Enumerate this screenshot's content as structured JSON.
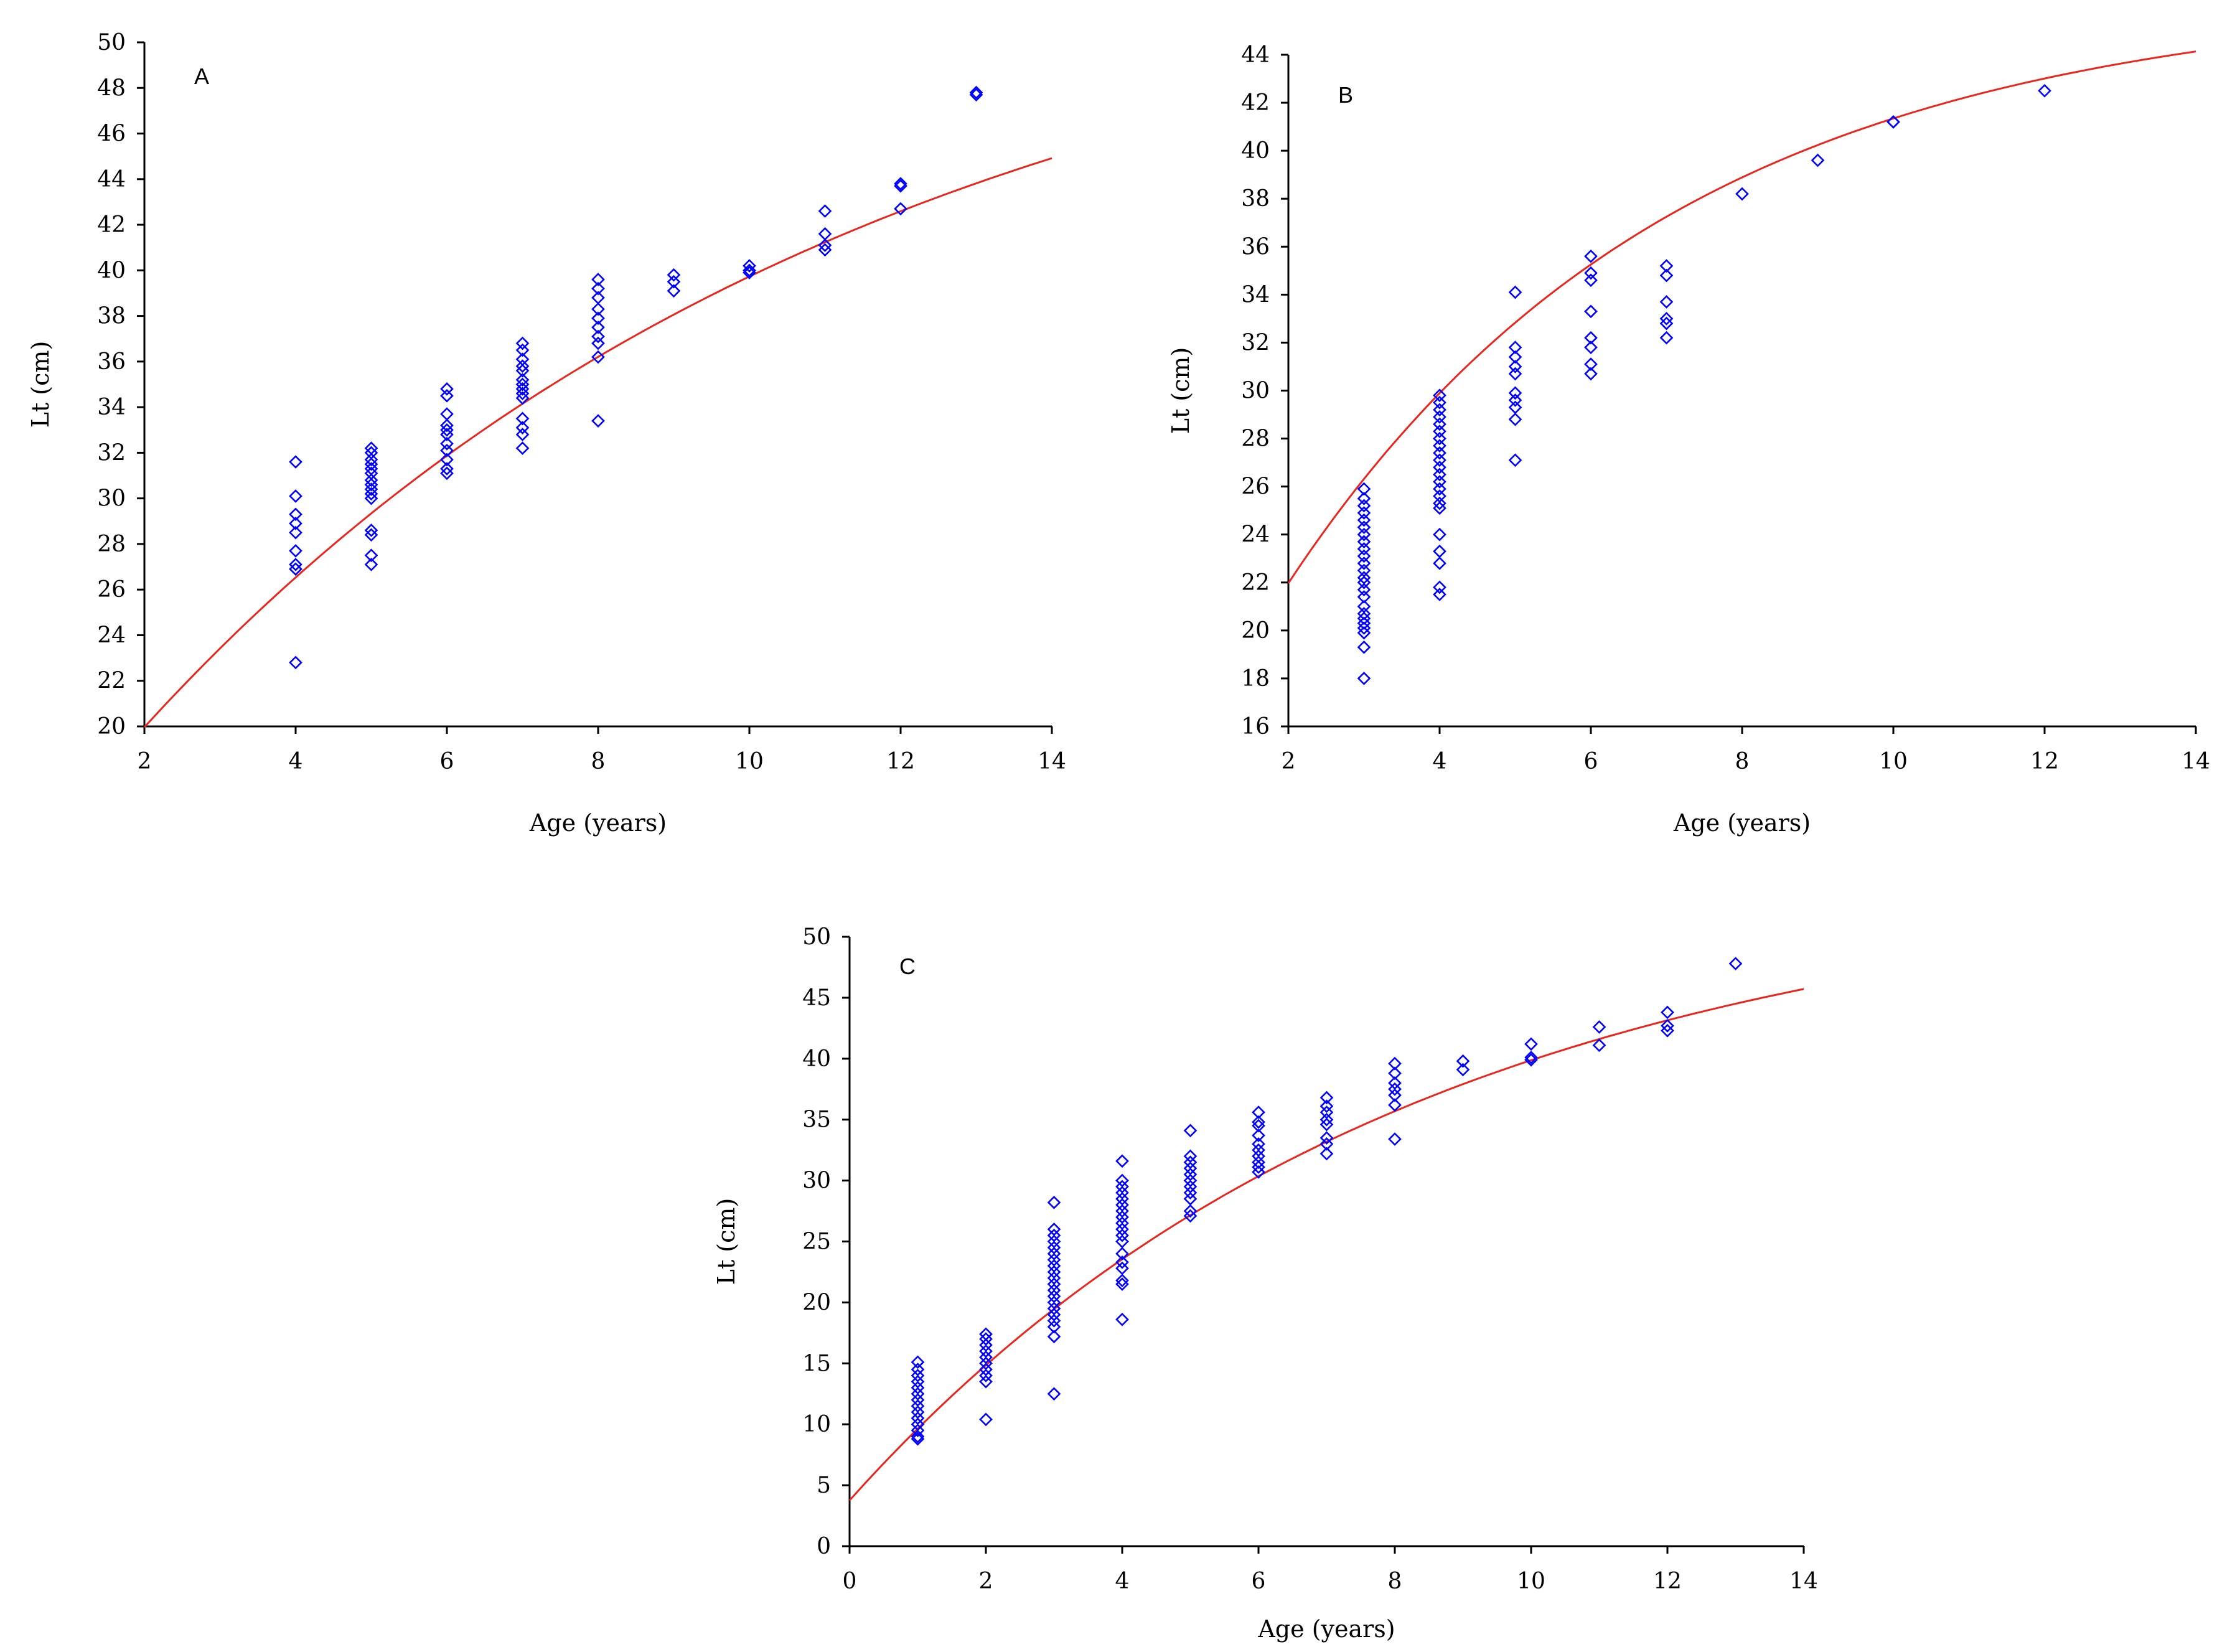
{
  "colors": {
    "points": "#0000ff",
    "curve": "#e8261e",
    "axes": "#000000"
  },
  "chart_data": [
    {
      "panel": "A",
      "type": "scatter",
      "title": "A",
      "xlabel": "Age (years)",
      "ylabel": "Lt (cm)",
      "xlim": [
        2,
        14
      ],
      "ylim": [
        20,
        50
      ],
      "xticks": [
        2,
        4,
        6,
        8,
        10,
        12,
        14
      ],
      "yticks": [
        20,
        22,
        24,
        26,
        28,
        30,
        32,
        34,
        36,
        38,
        40,
        42,
        44,
        46,
        48,
        50
      ],
      "grid": false,
      "points": [
        [
          4,
          31.6
        ],
        [
          4,
          30.1
        ],
        [
          4,
          29.3
        ],
        [
          4,
          28.9
        ],
        [
          4,
          28.5
        ],
        [
          4,
          27.7
        ],
        [
          4,
          27.1
        ],
        [
          4,
          26.9
        ],
        [
          4,
          22.8
        ],
        [
          5,
          32.2
        ],
        [
          5,
          32.0
        ],
        [
          5,
          31.7
        ],
        [
          5,
          31.5
        ],
        [
          5,
          31.3
        ],
        [
          5,
          31.1
        ],
        [
          5,
          30.8
        ],
        [
          5,
          30.6
        ],
        [
          5,
          30.4
        ],
        [
          5,
          30.2
        ],
        [
          5,
          30.0
        ],
        [
          5,
          28.6
        ],
        [
          5,
          28.4
        ],
        [
          5,
          27.5
        ],
        [
          5,
          27.1
        ],
        [
          6,
          34.8
        ],
        [
          6,
          34.5
        ],
        [
          6,
          33.7
        ],
        [
          6,
          33.2
        ],
        [
          6,
          33.0
        ],
        [
          6,
          32.8
        ],
        [
          6,
          32.4
        ],
        [
          6,
          32.1
        ],
        [
          6,
          31.7
        ],
        [
          6,
          31.3
        ],
        [
          6,
          31.1
        ],
        [
          7,
          36.8
        ],
        [
          7,
          36.5
        ],
        [
          7,
          36.1
        ],
        [
          7,
          35.8
        ],
        [
          7,
          35.6
        ],
        [
          7,
          35.2
        ],
        [
          7,
          35.0
        ],
        [
          7,
          34.8
        ],
        [
          7,
          34.6
        ],
        [
          7,
          34.4
        ],
        [
          7,
          33.5
        ],
        [
          7,
          33.1
        ],
        [
          7,
          32.8
        ],
        [
          7,
          32.2
        ],
        [
          8,
          39.6
        ],
        [
          8,
          39.2
        ],
        [
          8,
          38.8
        ],
        [
          8,
          38.3
        ],
        [
          8,
          37.9
        ],
        [
          8,
          37.5
        ],
        [
          8,
          37.1
        ],
        [
          8,
          36.8
        ],
        [
          8,
          36.2
        ],
        [
          8,
          33.4
        ],
        [
          9,
          39.8
        ],
        [
          9,
          39.5
        ],
        [
          9,
          39.1
        ],
        [
          10,
          40.2
        ],
        [
          10,
          40.0
        ],
        [
          10,
          39.9
        ],
        [
          11,
          42.6
        ],
        [
          11,
          41.6
        ],
        [
          11,
          41.1
        ],
        [
          11,
          40.9
        ],
        [
          12,
          43.8
        ],
        [
          12,
          43.7
        ],
        [
          12,
          42.7
        ],
        [
          13,
          47.8
        ],
        [
          13,
          47.7
        ]
      ],
      "curve": {
        "model": "von Bertalanffy",
        "Linf": 55.0,
        "K": 0.1038,
        "t0": -2.345,
        "x_range": [
          2,
          14
        ]
      }
    },
    {
      "panel": "B",
      "type": "scatter",
      "title": "B",
      "xlabel": "Age (years)",
      "ylabel": "Lt (cm)",
      "xlim": [
        2,
        14
      ],
      "ylim": [
        16,
        44
      ],
      "xticks": [
        2,
        4,
        6,
        8,
        10,
        12,
        14
      ],
      "yticks": [
        16,
        18,
        20,
        22,
        24,
        26,
        28,
        30,
        32,
        34,
        36,
        38,
        40,
        42,
        44
      ],
      "grid": false,
      "points": [
        [
          3,
          25.9
        ],
        [
          3,
          25.5
        ],
        [
          3,
          25.2
        ],
        [
          3,
          24.9
        ],
        [
          3,
          24.6
        ],
        [
          3,
          24.3
        ],
        [
          3,
          24.0
        ],
        [
          3,
          23.7
        ],
        [
          3,
          23.4
        ],
        [
          3,
          23.1
        ],
        [
          3,
          22.8
        ],
        [
          3,
          22.5
        ],
        [
          3,
          22.2
        ],
        [
          3,
          22.0
        ],
        [
          3,
          21.7
        ],
        [
          3,
          21.4
        ],
        [
          3,
          21.0
        ],
        [
          3,
          20.7
        ],
        [
          3,
          20.5
        ],
        [
          3,
          20.3
        ],
        [
          3,
          20.1
        ],
        [
          3,
          19.9
        ],
        [
          3,
          19.3
        ],
        [
          3,
          18.0
        ],
        [
          4,
          29.8
        ],
        [
          4,
          29.5
        ],
        [
          4,
          29.2
        ],
        [
          4,
          28.9
        ],
        [
          4,
          28.6
        ],
        [
          4,
          28.3
        ],
        [
          4,
          28.0
        ],
        [
          4,
          27.7
        ],
        [
          4,
          27.4
        ],
        [
          4,
          27.1
        ],
        [
          4,
          26.8
        ],
        [
          4,
          26.5
        ],
        [
          4,
          26.2
        ],
        [
          4,
          25.9
        ],
        [
          4,
          25.6
        ],
        [
          4,
          25.3
        ],
        [
          4,
          25.1
        ],
        [
          4,
          24.0
        ],
        [
          4,
          23.3
        ],
        [
          4,
          22.8
        ],
        [
          4,
          21.8
        ],
        [
          4,
          21.5
        ],
        [
          5,
          34.1
        ],
        [
          5,
          31.8
        ],
        [
          5,
          31.4
        ],
        [
          5,
          31.0
        ],
        [
          5,
          30.7
        ],
        [
          5,
          29.9
        ],
        [
          5,
          29.6
        ],
        [
          5,
          29.3
        ],
        [
          5,
          28.8
        ],
        [
          5,
          27.1
        ],
        [
          6,
          35.6
        ],
        [
          6,
          34.9
        ],
        [
          6,
          34.6
        ],
        [
          6,
          33.3
        ],
        [
          6,
          32.2
        ],
        [
          6,
          31.8
        ],
        [
          6,
          31.1
        ],
        [
          6,
          30.7
        ],
        [
          7,
          35.2
        ],
        [
          7,
          34.8
        ],
        [
          7,
          33.7
        ],
        [
          7,
          33.0
        ],
        [
          7,
          32.8
        ],
        [
          7,
          32.2
        ],
        [
          8,
          38.2
        ],
        [
          9,
          39.6
        ],
        [
          10,
          41.2
        ],
        [
          10,
          41.2
        ],
        [
          12,
          42.5
        ]
      ],
      "curve": {
        "model": "von Bertalanffy",
        "Linf": 46.5,
        "K": 0.195,
        "t0": -1.28,
        "x_range": [
          2,
          14
        ]
      }
    },
    {
      "panel": "C",
      "type": "scatter",
      "title": "C",
      "xlabel": "Age (years)",
      "ylabel": "Lt (cm)",
      "xlim": [
        0,
        14
      ],
      "ylim": [
        0,
        50
      ],
      "xticks": [
        0,
        2,
        4,
        6,
        8,
        10,
        12,
        14
      ],
      "yticks": [
        0,
        5,
        10,
        15,
        20,
        25,
        30,
        35,
        40,
        45,
        50
      ],
      "grid": false,
      "points": [
        [
          1,
          15.1
        ],
        [
          1,
          14.5
        ],
        [
          1,
          14.0
        ],
        [
          1,
          13.5
        ],
        [
          1,
          13.0
        ],
        [
          1,
          12.5
        ],
        [
          1,
          12.0
        ],
        [
          1,
          11.5
        ],
        [
          1,
          11.0
        ],
        [
          1,
          10.5
        ],
        [
          1,
          10.0
        ],
        [
          1,
          9.5
        ],
        [
          1,
          9.0
        ],
        [
          1,
          8.8
        ],
        [
          2,
          17.4
        ],
        [
          2,
          17.0
        ],
        [
          2,
          16.5
        ],
        [
          2,
          16.0
        ],
        [
          2,
          15.5
        ],
        [
          2,
          15.0
        ],
        [
          2,
          14.5
        ],
        [
          2,
          14.0
        ],
        [
          2,
          13.5
        ],
        [
          2,
          10.4
        ],
        [
          3,
          28.2
        ],
        [
          3,
          26.0
        ],
        [
          3,
          25.5
        ],
        [
          3,
          25.0
        ],
        [
          3,
          24.5
        ],
        [
          3,
          24.0
        ],
        [
          3,
          23.5
        ],
        [
          3,
          23.0
        ],
        [
          3,
          22.5
        ],
        [
          3,
          22.0
        ],
        [
          3,
          21.5
        ],
        [
          3,
          21.0
        ],
        [
          3,
          20.5
        ],
        [
          3,
          20.0
        ],
        [
          3,
          19.5
        ],
        [
          3,
          19.0
        ],
        [
          3,
          18.5
        ],
        [
          3,
          18.0
        ],
        [
          3,
          17.2
        ],
        [
          3,
          12.5
        ],
        [
          4,
          31.6
        ],
        [
          4,
          30.0
        ],
        [
          4,
          29.5
        ],
        [
          4,
          29.0
        ],
        [
          4,
          28.5
        ],
        [
          4,
          28.0
        ],
        [
          4,
          27.5
        ],
        [
          4,
          27.0
        ],
        [
          4,
          26.5
        ],
        [
          4,
          26.0
        ],
        [
          4,
          25.5
        ],
        [
          4,
          25.0
        ],
        [
          4,
          24.0
        ],
        [
          4,
          23.3
        ],
        [
          4,
          22.8
        ],
        [
          4,
          21.8
        ],
        [
          4,
          21.5
        ],
        [
          4,
          18.6
        ],
        [
          5,
          34.1
        ],
        [
          5,
          32.0
        ],
        [
          5,
          31.5
        ],
        [
          5,
          31.0
        ],
        [
          5,
          30.5
        ],
        [
          5,
          30.0
        ],
        [
          5,
          29.5
        ],
        [
          5,
          29.0
        ],
        [
          5,
          28.5
        ],
        [
          5,
          27.5
        ],
        [
          5,
          27.1
        ],
        [
          6,
          35.6
        ],
        [
          6,
          34.8
        ],
        [
          6,
          34.5
        ],
        [
          6,
          33.7
        ],
        [
          6,
          33.0
        ],
        [
          6,
          32.5
        ],
        [
          6,
          32.0
        ],
        [
          6,
          31.5
        ],
        [
          6,
          31.1
        ],
        [
          6,
          30.7
        ],
        [
          7,
          36.8
        ],
        [
          7,
          36.1
        ],
        [
          7,
          35.6
        ],
        [
          7,
          35.0
        ],
        [
          7,
          34.6
        ],
        [
          7,
          33.5
        ],
        [
          7,
          33.0
        ],
        [
          7,
          32.2
        ],
        [
          8,
          39.6
        ],
        [
          8,
          38.8
        ],
        [
          8,
          38.0
        ],
        [
          8,
          37.5
        ],
        [
          8,
          37.0
        ],
        [
          8,
          36.2
        ],
        [
          8,
          33.4
        ],
        [
          9,
          39.8
        ],
        [
          9,
          39.1
        ],
        [
          10,
          41.2
        ],
        [
          10,
          40.1
        ],
        [
          10,
          39.9
        ],
        [
          11,
          42.6
        ],
        [
          11,
          41.1
        ],
        [
          12,
          43.8
        ],
        [
          12,
          42.7
        ],
        [
          12,
          42.3
        ],
        [
          13,
          47.8
        ]
      ],
      "curve": {
        "model": "von Bertalanffy",
        "Linf": 55.0,
        "K": 0.122,
        "t0": -0.58,
        "x_range": [
          0,
          14
        ]
      }
    }
  ]
}
